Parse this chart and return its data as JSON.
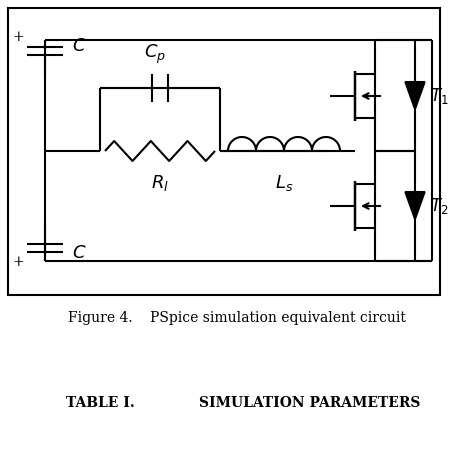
{
  "title": "Figure 4.    PSpice simulation equivalent circuit",
  "table_title": "TABLE I.",
  "table_subtitle": "SIMULATION PARAMETERS",
  "line_color": "#000000",
  "bg_color": "#ffffff",
  "lw": 1.5,
  "fig_width": 4.74,
  "fig_height": 4.58,
  "dpi": 100
}
